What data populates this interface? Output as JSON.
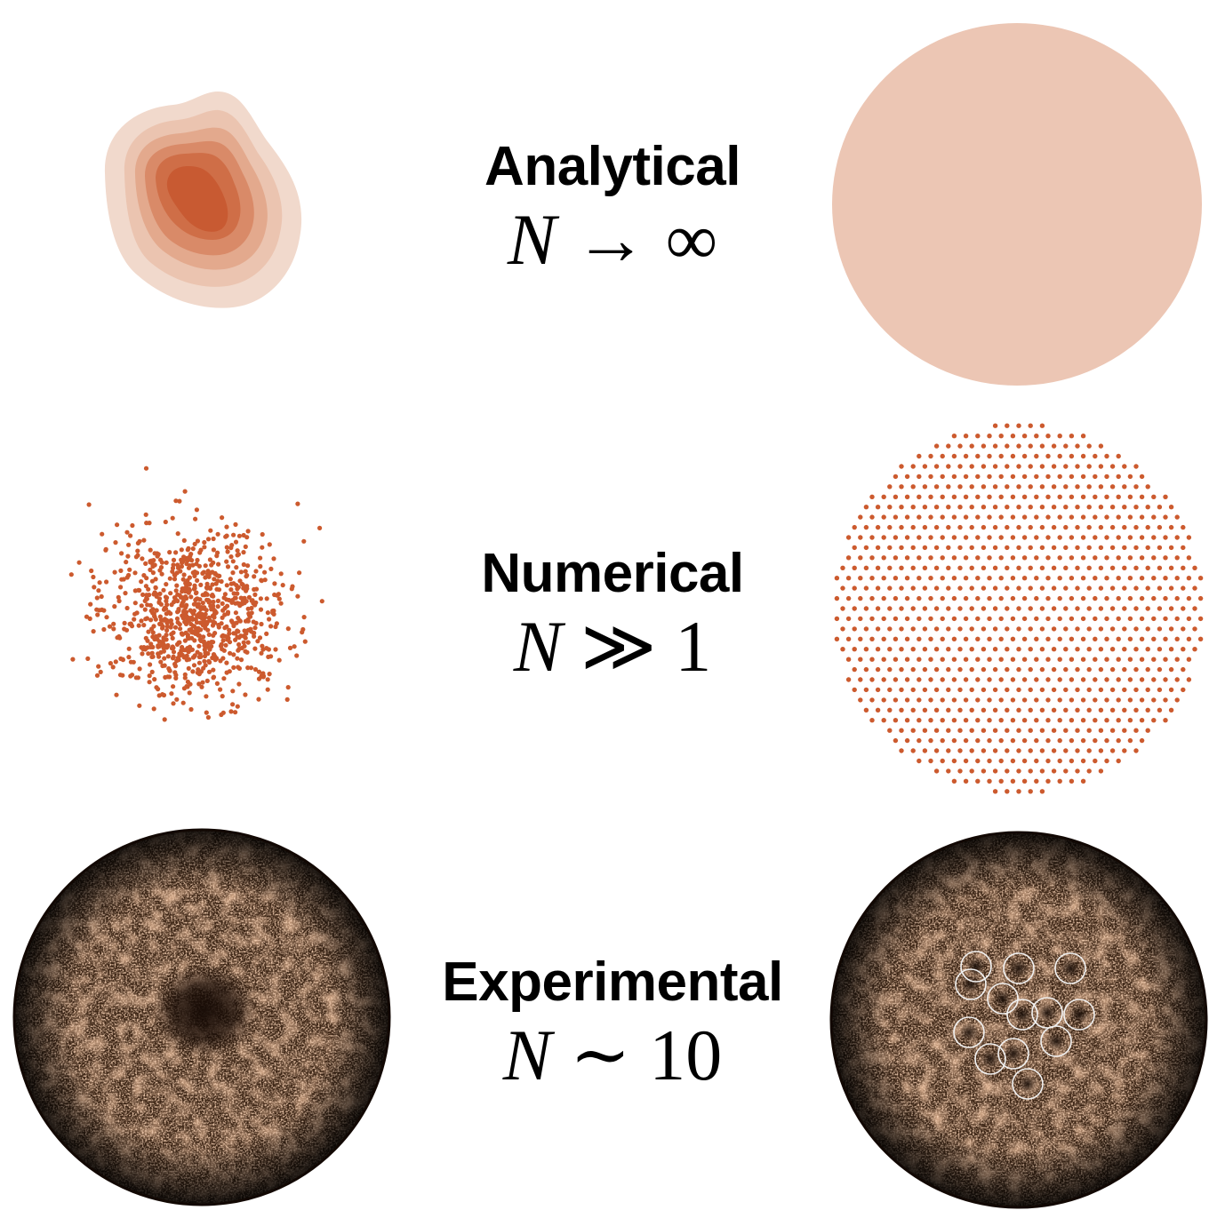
{
  "rows": [
    {
      "title": "Analytical",
      "math_var": "N",
      "math_rel": "→",
      "math_val": "∞"
    },
    {
      "title": "Numerical",
      "math_var": "N",
      "math_rel": "≫",
      "math_val": "1"
    },
    {
      "title": "Experimental",
      "math_var": "N",
      "math_rel": "∼",
      "math_val": "10"
    }
  ],
  "colors": {
    "accent": "#cc5a2e",
    "analytical_disk": "#ecc6b4",
    "experimental_dark": "#1a0e07",
    "experimental_bright": "#e7a072",
    "vortex_ring": "#f2f2f2"
  },
  "numerical_dot_count": 900
}
